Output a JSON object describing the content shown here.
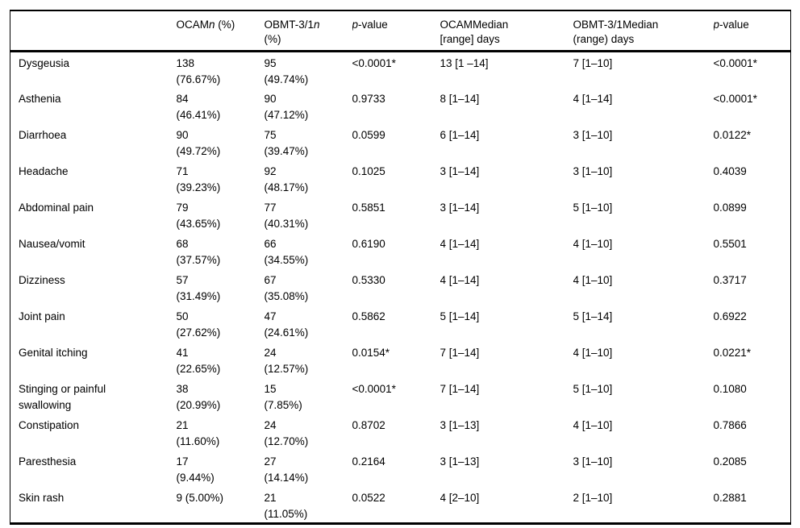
{
  "table": {
    "header": {
      "c1": "",
      "c2": {
        "text": "OCAM",
        "it": "n",
        "rest": " (%)"
      },
      "c3": {
        "text": "OBMT-3/1",
        "it": "n",
        "rest": "(%)"
      },
      "c4": {
        "it": "p",
        "rest": "-value"
      },
      "c5": {
        "line1": "OCAMMedian",
        "line2": "[range] days"
      },
      "c6": {
        "line1": "OBMT-3/1Median",
        "line2": "(range) days"
      },
      "c7": {
        "it": "p",
        "rest": "-value"
      }
    },
    "rows": [
      {
        "label": "Dysgeusia",
        "ocam_n": "138\n(76.67%)",
        "obmt_n": "95\n(49.74%)",
        "p_freq": "<0.0001*",
        "ocam_med": "13 [1 –14]",
        "obmt_med": "7 [1–10]",
        "p_dur": "<0.0001*"
      },
      {
        "label": "Asthenia",
        "ocam_n": "84\n(46.41%)",
        "obmt_n": "90\n(47.12%)",
        "p_freq": "0.9733",
        "ocam_med": "8 [1–14]",
        "obmt_med": "4 [1–14]",
        "p_dur": "<0.0001*"
      },
      {
        "label": "Diarrhoea",
        "ocam_n": "90\n(49.72%)",
        "obmt_n": "75\n(39.47%)",
        "p_freq": "0.0599",
        "ocam_med": "6 [1–14]",
        "obmt_med": "3 [1–10]",
        "p_dur": "0.0122*"
      },
      {
        "label": "Headache",
        "ocam_n": "71\n(39.23%)",
        "obmt_n": "92\n(48.17%)",
        "p_freq": "0.1025",
        "ocam_med": "3 [1–14]",
        "obmt_med": "3 [1–10]",
        "p_dur": "0.4039"
      },
      {
        "label": "Abdominal pain",
        "ocam_n": "79\n(43.65%)",
        "obmt_n": "77\n(40.31%)",
        "p_freq": "0.5851",
        "ocam_med": "3 [1–14]",
        "obmt_med": "5 [1–10]",
        "p_dur": "0.0899"
      },
      {
        "label": "Nausea/vomit",
        "ocam_n": "68\n(37.57%)",
        "obmt_n": "66\n(34.55%)",
        "p_freq": "0.6190",
        "ocam_med": "4 [1–14]",
        "obmt_med": "4 [1–10]",
        "p_dur": "0.5501"
      },
      {
        "label": "Dizziness",
        "ocam_n": "57\n(31.49%)",
        "obmt_n": "67\n(35.08%)",
        "p_freq": "0.5330",
        "ocam_med": "4 [1–14]",
        "obmt_med": "4 [1–10]",
        "p_dur": "0.3717"
      },
      {
        "label": "Joint pain",
        "ocam_n": "50\n(27.62%)",
        "obmt_n": "47\n(24.61%)",
        "p_freq": "0.5862",
        "ocam_med": "5 [1–14]",
        "obmt_med": "5 [1–14]",
        "p_dur": "0.6922"
      },
      {
        "label": "Genital itching",
        "ocam_n": "41\n(22.65%)",
        "obmt_n": "24\n(12.57%)",
        "p_freq": "0.0154*",
        "ocam_med": "7 [1–14]",
        "obmt_med": "4 [1–10]",
        "p_dur": "0.0221*"
      },
      {
        "label": "Stinging or painful\nswallowing",
        "ocam_n": "38\n(20.99%)",
        "obmt_n": "15\n(7.85%)",
        "p_freq": "<0.0001*",
        "ocam_med": "7 [1–14]",
        "obmt_med": "5 [1–10]",
        "p_dur": "0.1080"
      },
      {
        "label": "Constipation",
        "ocam_n": "21\n(11.60%)",
        "obmt_n": "24\n(12.70%)",
        "p_freq": "0.8702",
        "ocam_med": "3 [1–13]",
        "obmt_med": "4 [1–10]",
        "p_dur": "0.7866"
      },
      {
        "label": "Paresthesia",
        "ocam_n": "17\n(9.44%)",
        "obmt_n": "27\n(14.14%)",
        "p_freq": "0.2164",
        "ocam_med": "3 [1–13]",
        "obmt_med": "3 [1–10]",
        "p_dur": "0.2085"
      },
      {
        "label": "Skin rash",
        "ocam_n": "9 (5.00%)",
        "obmt_n": "21\n(11.05%)",
        "p_freq": "0.0522",
        "ocam_med": "4 [2–10]",
        "obmt_med": "2 [1–10]",
        "p_dur": "0.2881"
      }
    ]
  }
}
